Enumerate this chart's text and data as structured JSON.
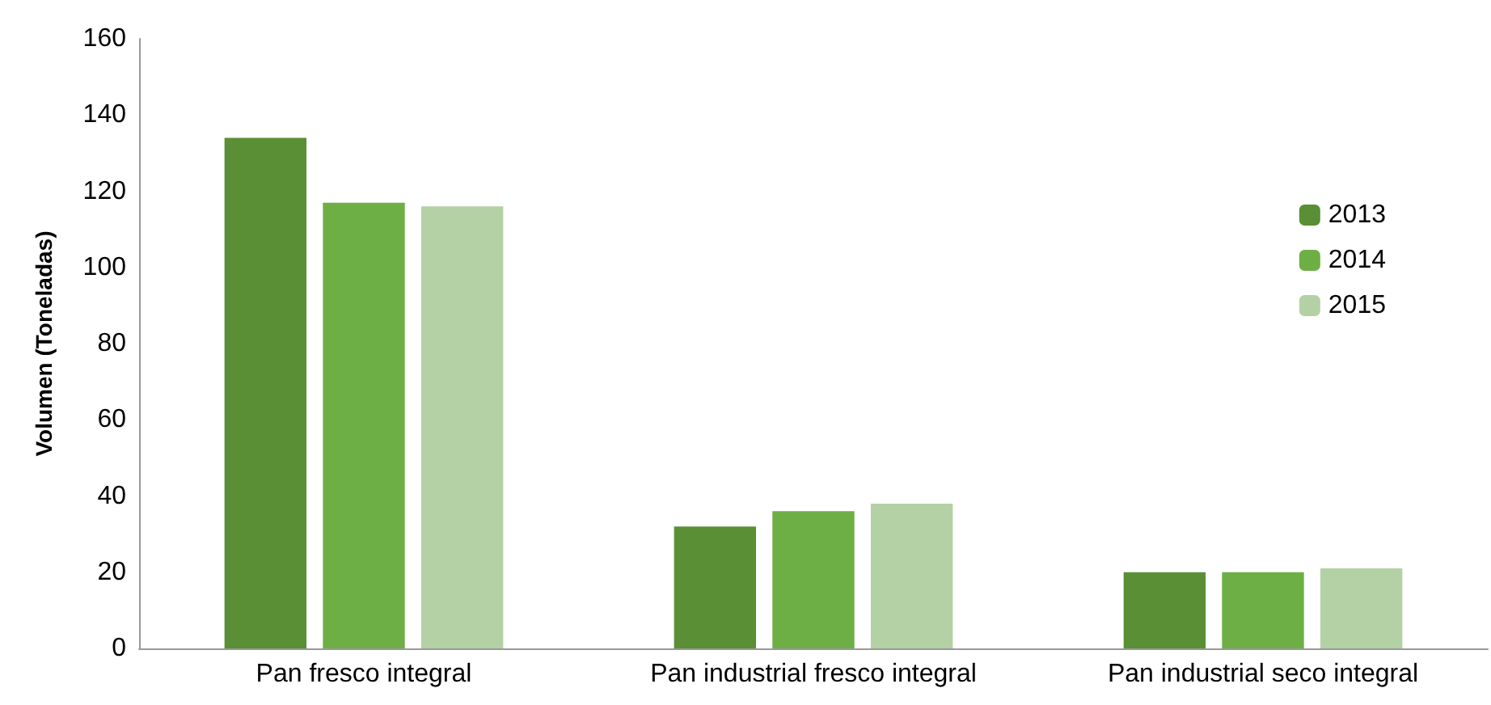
{
  "chart_data": {
    "type": "bar",
    "ylabel": "Volumen (Toneladas)",
    "categories": [
      "Pan fresco integral",
      "Pan industrial fresco integral",
      "Pan industrial seco integral"
    ],
    "series": [
      {
        "name": "2013",
        "color": "#5a8f35",
        "values": [
          134,
          32,
          20
        ]
      },
      {
        "name": "2014",
        "color": "#6eaf45",
        "values": [
          117,
          36,
          20
        ]
      },
      {
        "name": "2015",
        "color": "#b3d1a5",
        "values": [
          116,
          38,
          21
        ]
      }
    ],
    "ylim": [
      0,
      160
    ],
    "yticks": [
      0,
      20,
      40,
      60,
      80,
      100,
      120,
      140,
      160
    ],
    "grid": false,
    "legend": "right"
  }
}
